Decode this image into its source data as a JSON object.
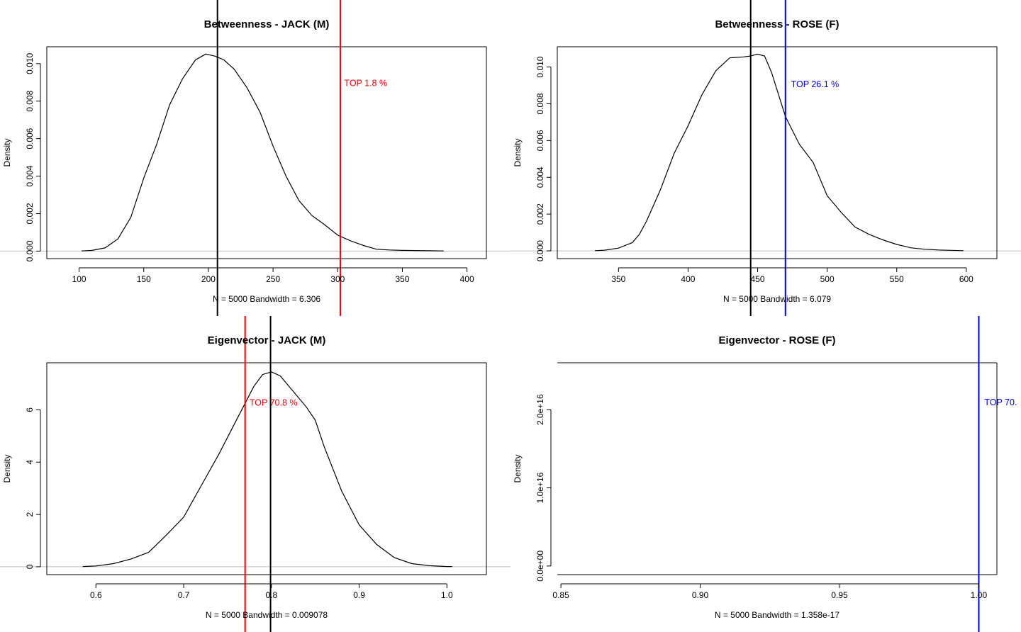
{
  "chart_data": [
    {
      "type": "line",
      "title": "Betweenness - JACK (M)",
      "xlabel": "N = 5000   Bandwidth = 6.306",
      "ylabel": "Density",
      "xlim": [
        75,
        415
      ],
      "ylim": [
        -0.0004,
        0.0109
      ],
      "xticks": [
        "100",
        "150",
        "200",
        "250",
        "300",
        "350",
        "400"
      ],
      "yticks": [
        "0.000",
        "0.002",
        "0.004",
        "0.006",
        "0.008",
        "0.010"
      ],
      "series": [
        {
          "name": "density",
          "color": "#000000",
          "x": [
            102,
            110,
            120,
            130,
            140,
            150,
            160,
            170,
            180,
            190,
            198,
            205,
            212,
            220,
            230,
            240,
            250,
            260,
            270,
            280,
            290,
            300,
            310,
            320,
            330,
            340,
            350,
            360,
            370,
            382
          ],
          "y": [
            1e-05,
            4e-05,
            0.00017,
            0.00065,
            0.0018,
            0.0039,
            0.0057,
            0.0078,
            0.0092,
            0.0102,
            0.01051,
            0.0104,
            0.0102,
            0.0097,
            0.0087,
            0.0074,
            0.0056,
            0.004,
            0.0027,
            0.0019,
            0.0014,
            0.00085,
            0.00055,
            0.0003,
            0.0001,
            6e-05,
            4e-05,
            3e-05,
            2e-05,
            1e-05
          ]
        }
      ],
      "vlines": [
        {
          "name": "observed",
          "x": 302,
          "color": "#e8000b"
        },
        {
          "name": "mean",
          "x": 207,
          "color": "#000000"
        }
      ],
      "annotation": {
        "text": "TOP 1.8 %",
        "x": 305,
        "y": 0.009,
        "color": "#e8000b"
      }
    },
    {
      "type": "line",
      "title": "Betweenness - ROSE (F)",
      "xlabel": "N = 5000   Bandwidth = 6.079",
      "ylabel": "Density",
      "xlim": [
        306,
        622
      ],
      "ylim": [
        -0.00042,
        0.0111
      ],
      "xticks": [
        "350",
        "400",
        "450",
        "500",
        "550",
        "600"
      ],
      "yticks": [
        "0.000",
        "0.002",
        "0.004",
        "0.006",
        "0.008",
        "0.010"
      ],
      "series": [
        {
          "name": "density",
          "color": "#000000",
          "x": [
            333,
            340,
            350,
            360,
            365,
            370,
            380,
            390,
            400,
            410,
            420,
            430,
            440,
            445,
            450,
            455,
            460,
            470,
            480,
            490,
            500,
            510,
            520,
            530,
            540,
            550,
            560,
            570,
            580,
            598
          ],
          "y": [
            1e-05,
            4e-05,
            0.00015,
            0.00045,
            0.0009,
            0.0016,
            0.0033,
            0.0053,
            0.0068,
            0.0085,
            0.0098,
            0.0105,
            0.01055,
            0.0106,
            0.0107,
            0.0106,
            0.0097,
            0.0073,
            0.0058,
            0.0048,
            0.003,
            0.0021,
            0.0013,
            0.0009,
            0.0006,
            0.00035,
            0.00017,
            9e-05,
            5e-05,
            1e-05
          ]
        }
      ],
      "vlines": [
        {
          "name": "observed",
          "x": 470,
          "color": "#0000e0"
        },
        {
          "name": "mean",
          "x": 445,
          "color": "#000000"
        }
      ],
      "annotation": {
        "text": "TOP 26.1 %",
        "x": 474,
        "y": 0.0091,
        "color": "#0000e0"
      }
    },
    {
      "type": "line",
      "title": "Eigenvector - JACK (M)",
      "xlabel": "N = 5000   Bandwidth = 0.009078",
      "ylabel": "Density",
      "xlim": [
        0.544,
        1.045
      ],
      "ylim": [
        -0.3,
        7.8
      ],
      "xticks": [
        "0.6",
        "0.7",
        "0.8",
        "0.9",
        "1.0"
      ],
      "yticks": [
        "0",
        "2",
        "4",
        "6"
      ],
      "series": [
        {
          "name": "density",
          "color": "#000000",
          "x": [
            0.585,
            0.6,
            0.62,
            0.64,
            0.66,
            0.68,
            0.7,
            0.72,
            0.74,
            0.76,
            0.78,
            0.79,
            0.8,
            0.81,
            0.82,
            0.84,
            0.85,
            0.86,
            0.88,
            0.9,
            0.92,
            0.94,
            0.96,
            0.98,
            1.0,
            1.006
          ],
          "y": [
            0.01,
            0.03,
            0.12,
            0.3,
            0.55,
            1.2,
            1.9,
            3.1,
            4.3,
            5.6,
            6.9,
            7.35,
            7.45,
            7.3,
            6.9,
            6.1,
            5.6,
            4.6,
            2.9,
            1.6,
            0.85,
            0.35,
            0.12,
            0.04,
            0.01,
            0.01
          ]
        }
      ],
      "vlines": [
        {
          "name": "observed",
          "x": 0.77,
          "color": "#e8000b"
        },
        {
          "name": "mean",
          "x": 0.799,
          "color": "#000000"
        }
      ],
      "annotation": {
        "text": "TOP 70.8 %",
        "x": 0.775,
        "y": 6.3,
        "color": "#e8000b"
      }
    },
    {
      "type": "line",
      "title": "Eigenvector - ROSE (F)",
      "xlabel": "N = 5000   Bandwidth = 1.358e-17",
      "ylabel": "Density",
      "xlim": [
        0.8487,
        1.0065
      ],
      "ylim": [
        -1100000000000000.0,
        2.6e+16
      ],
      "xticks": [
        "0.85",
        "0.90",
        "0.95",
        "1.00"
      ],
      "yticks": [
        "0.0e+00",
        "1.0e+16",
        "2.0e+16"
      ],
      "series": [],
      "vlines": [
        {
          "name": "observed",
          "x": 1.0,
          "color": "#0000e0"
        }
      ],
      "annotation": {
        "text": "TOP 70.",
        "x": 1.002,
        "y": 2.1e+16,
        "color": "#0000e0"
      }
    }
  ]
}
